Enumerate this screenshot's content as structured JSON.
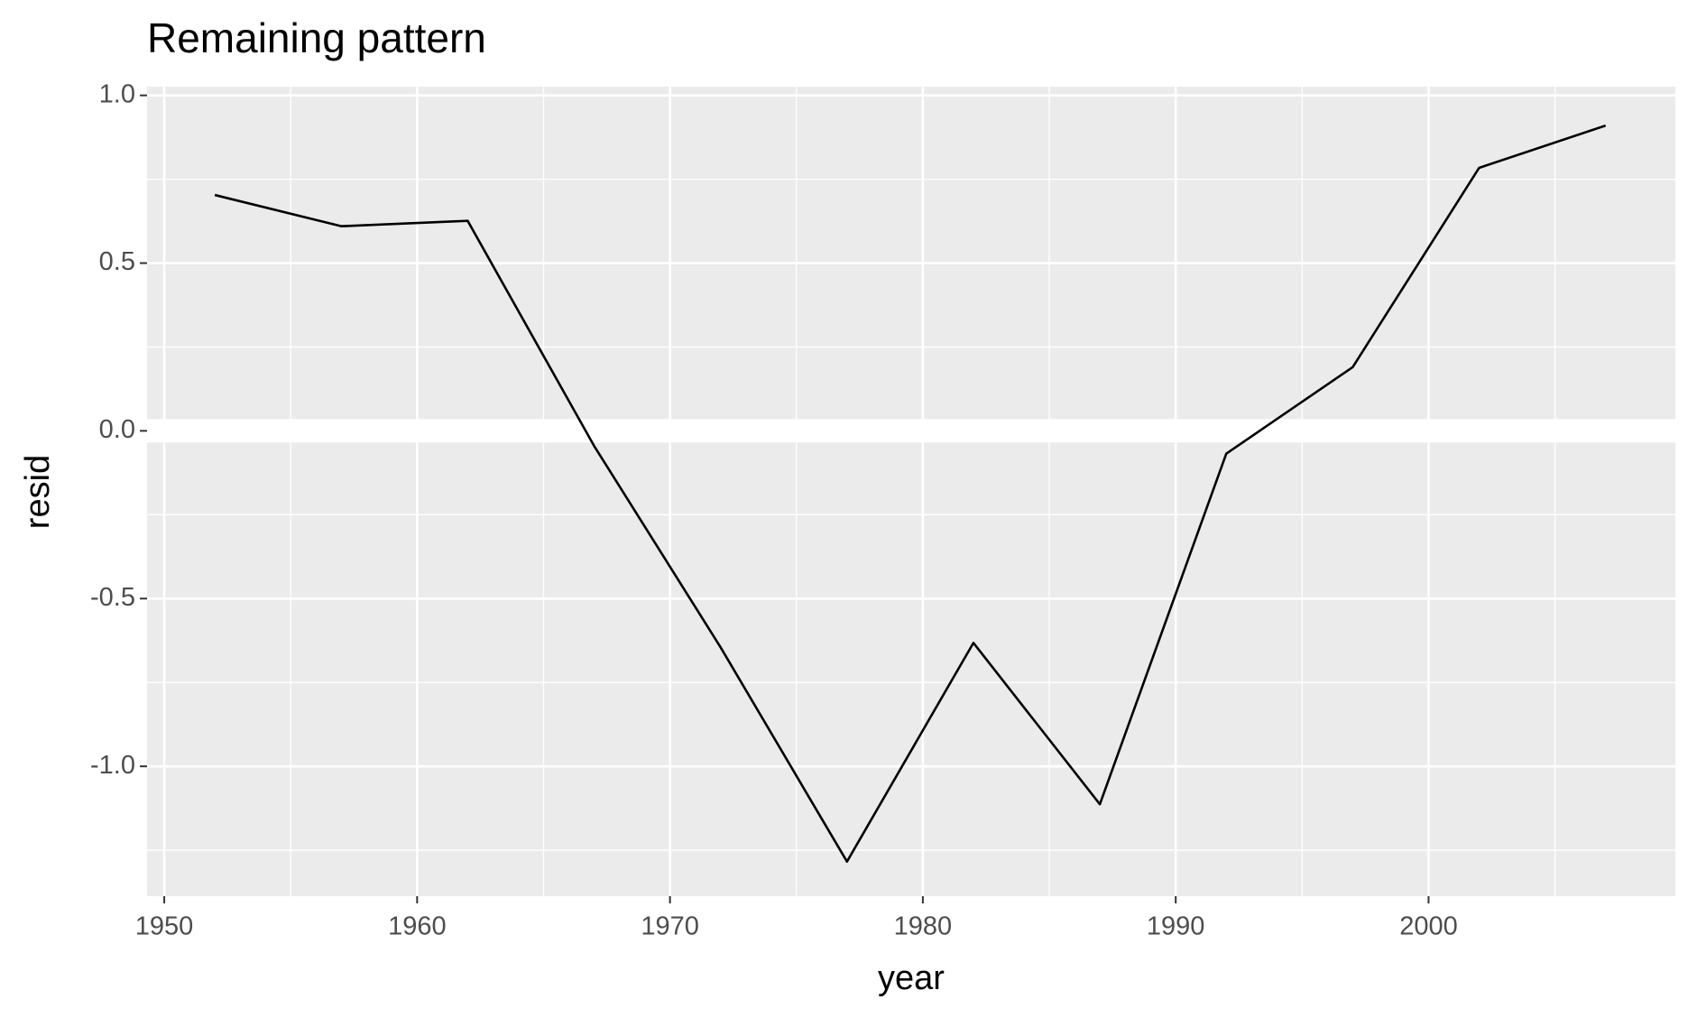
{
  "chart_data": {
    "type": "line",
    "title": "Remaining pattern",
    "x_label": "year",
    "y_label": "resid",
    "x": [
      1952,
      1957,
      1962,
      1967,
      1972,
      1977,
      1982,
      1987,
      1992,
      1997,
      2002,
      2007
    ],
    "series": [
      {
        "color": "#000000",
        "values": [
          0.703,
          0.61,
          0.626,
          -0.045,
          -0.645,
          -1.284,
          -0.632,
          -1.113,
          -0.068,
          0.19,
          0.784,
          0.91
        ]
      }
    ],
    "xlim": [
      1949.32,
      2009.76
    ],
    "xticks": [
      1950,
      1960,
      1970,
      1980,
      1990,
      2000
    ],
    "ylim": [
      -1.387,
      1.026
    ],
    "yticks": [
      {
        "value": -1,
        "label": "-1.0"
      },
      {
        "value": -0.5,
        "label": "-0.5"
      },
      {
        "value": 0,
        "label": "0.0"
      },
      {
        "value": 0.5,
        "label": "0.5"
      },
      {
        "value": 1,
        "label": "1.0"
      }
    ],
    "hline": 0,
    "grid": true
  }
}
